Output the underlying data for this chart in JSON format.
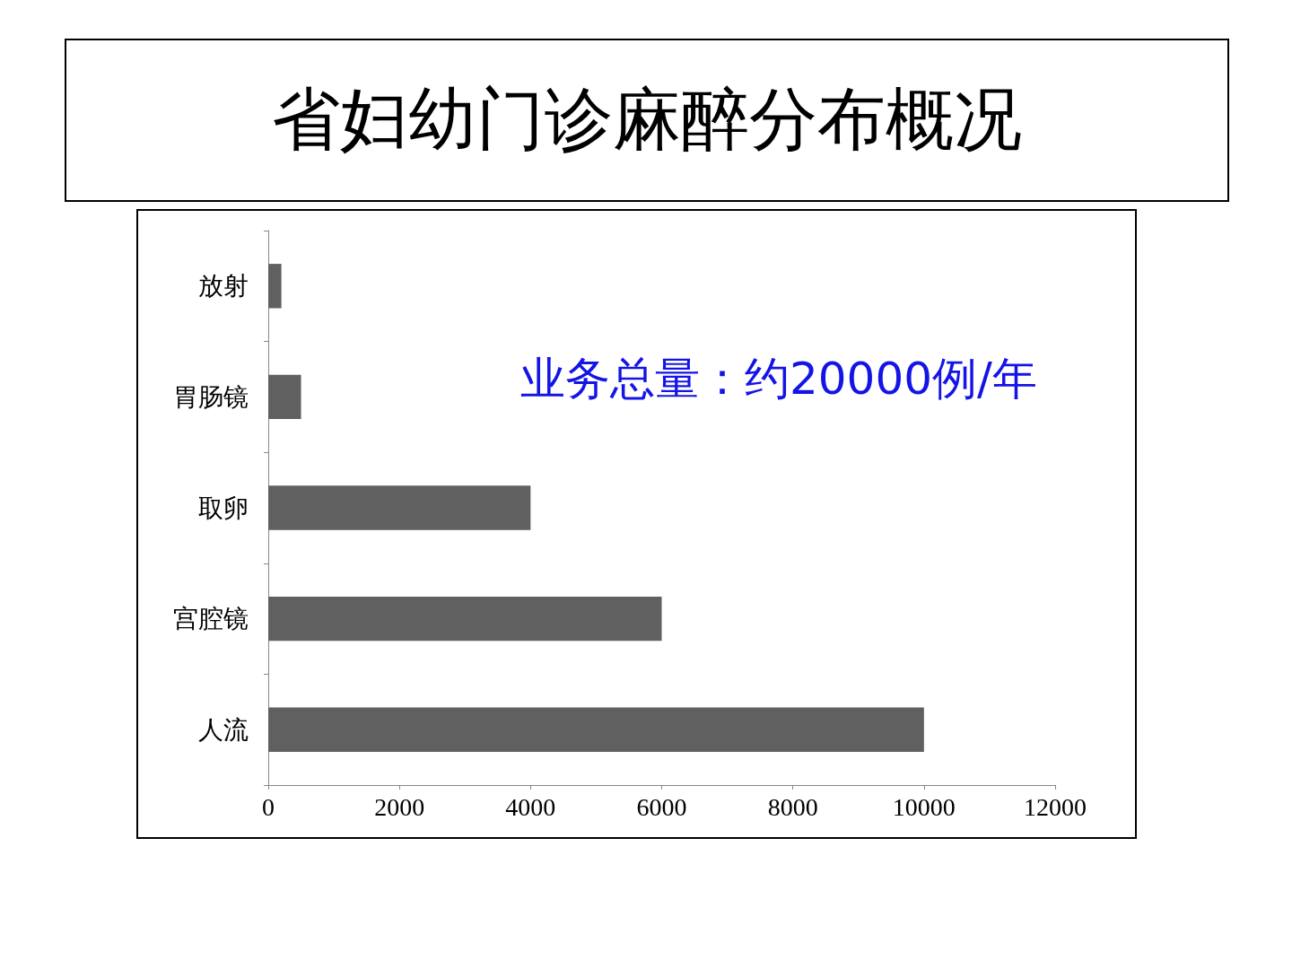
{
  "chart_data": {
    "type": "bar",
    "orientation": "horizontal",
    "title": "省妇幼门诊麻醉分布概况",
    "categories": [
      "放射",
      "胃肠镜",
      "取卵",
      "宫腔镜",
      "人流"
    ],
    "values": [
      200,
      500,
      4000,
      6000,
      10000
    ],
    "color": "#606060",
    "xlim": [
      0,
      12000
    ],
    "xticks": [
      0,
      2000,
      4000,
      6000,
      8000,
      10000,
      12000
    ],
    "annotations": [
      "业务总量：约20000例/年"
    ],
    "grid": false
  }
}
